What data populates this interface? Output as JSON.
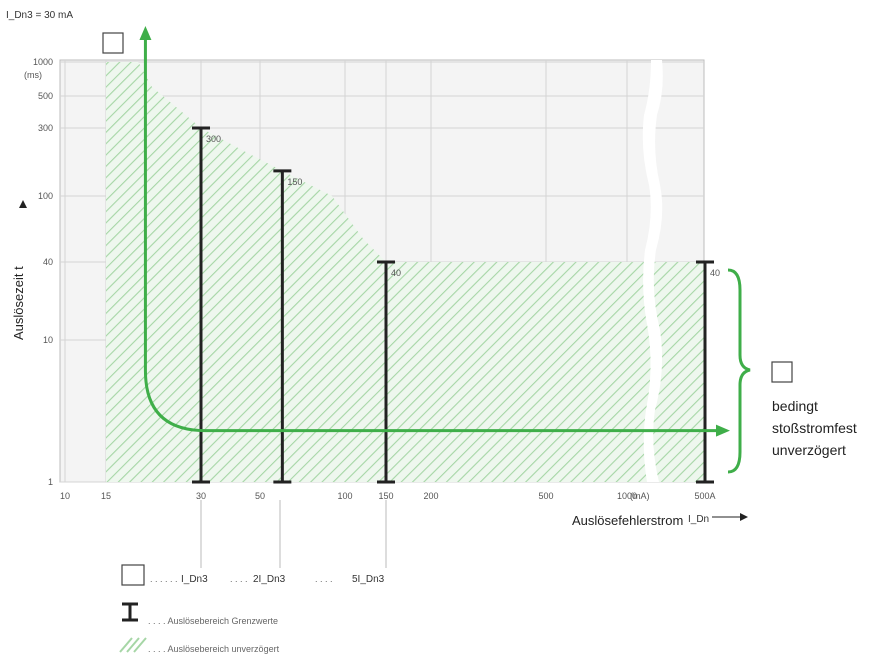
{
  "chart_data": {
    "type": "line",
    "title": "I_Dn3 = 30 mA",
    "xlabel": "Auslösefehlerstrom",
    "xlabel_symbol": "I_Dn",
    "ylabel": "Auslösezeit t",
    "x_unit": "(mA)",
    "y_unit": "(ms)",
    "x_scale": "log",
    "y_scale": "log",
    "xlim": [
      10,
      1000
    ],
    "ylim": [
      1,
      1000
    ],
    "x_ticks": [
      10,
      15,
      30,
      50,
      100,
      150,
      200,
      500,
      1000
    ],
    "x_tick_labels": [
      "10",
      "15",
      "30",
      "50",
      "100",
      "150",
      "200",
      "500",
      "1000"
    ],
    "x_extra_tick_label": "500A",
    "y_ticks": [
      1,
      10,
      40,
      100,
      300,
      500,
      1000
    ],
    "y_tick_labels": [
      "1",
      "10",
      "40",
      "100",
      "300",
      "500",
      "1000"
    ],
    "grid": true,
    "limit_bars": [
      {
        "x": 30,
        "y_min": 1,
        "y_max": 300,
        "label": "300"
      },
      {
        "x": 60,
        "y_min": 1,
        "y_max": 150,
        "label": "150"
      },
      {
        "x": 150,
        "y_min": 1,
        "y_max": 40,
        "label": "40"
      },
      {
        "x_label": "500A",
        "y_min": 1,
        "y_max": 40,
        "label": "40"
      }
    ],
    "hatched_region_boundary": [
      {
        "x": 15,
        "y": 1000
      },
      {
        "x": 19,
        "y": 1000
      },
      {
        "x": 21,
        "y": 600
      },
      {
        "x": 25,
        "y": 420
      },
      {
        "x": 30,
        "y": 300
      },
      {
        "x": 45,
        "y": 200
      },
      {
        "x": 60,
        "y": 150
      },
      {
        "x": 90,
        "y": 100
      },
      {
        "x": 120,
        "y": 55
      },
      {
        "x": 150,
        "y": 40
      },
      {
        "x": 1000,
        "y": 40
      }
    ],
    "trip_curve": {
      "vertical_x": 20,
      "horizontal_y": 2.3
    },
    "legend_placement": "bottom-left"
  },
  "annotations": {
    "bracket_labels": [
      "bedingt",
      "stoßstromfest",
      "unverzögert"
    ],
    "multiples": [
      "I_Dn3",
      "2I_Dn3",
      "5I_Dn3"
    ]
  },
  "legend": {
    "items": [
      {
        "symbol": "limit-bar",
        "text": ". . . . Auslösebereich Grenzwerte"
      },
      {
        "symbol": "hatch",
        "text": ". . . . Auslösebereich unverzögert"
      }
    ]
  },
  "colors": {
    "green": "#3fae49",
    "hatch": "#a6d6a6",
    "bar": "#222222",
    "plot_bg": "#f4f4f4"
  }
}
